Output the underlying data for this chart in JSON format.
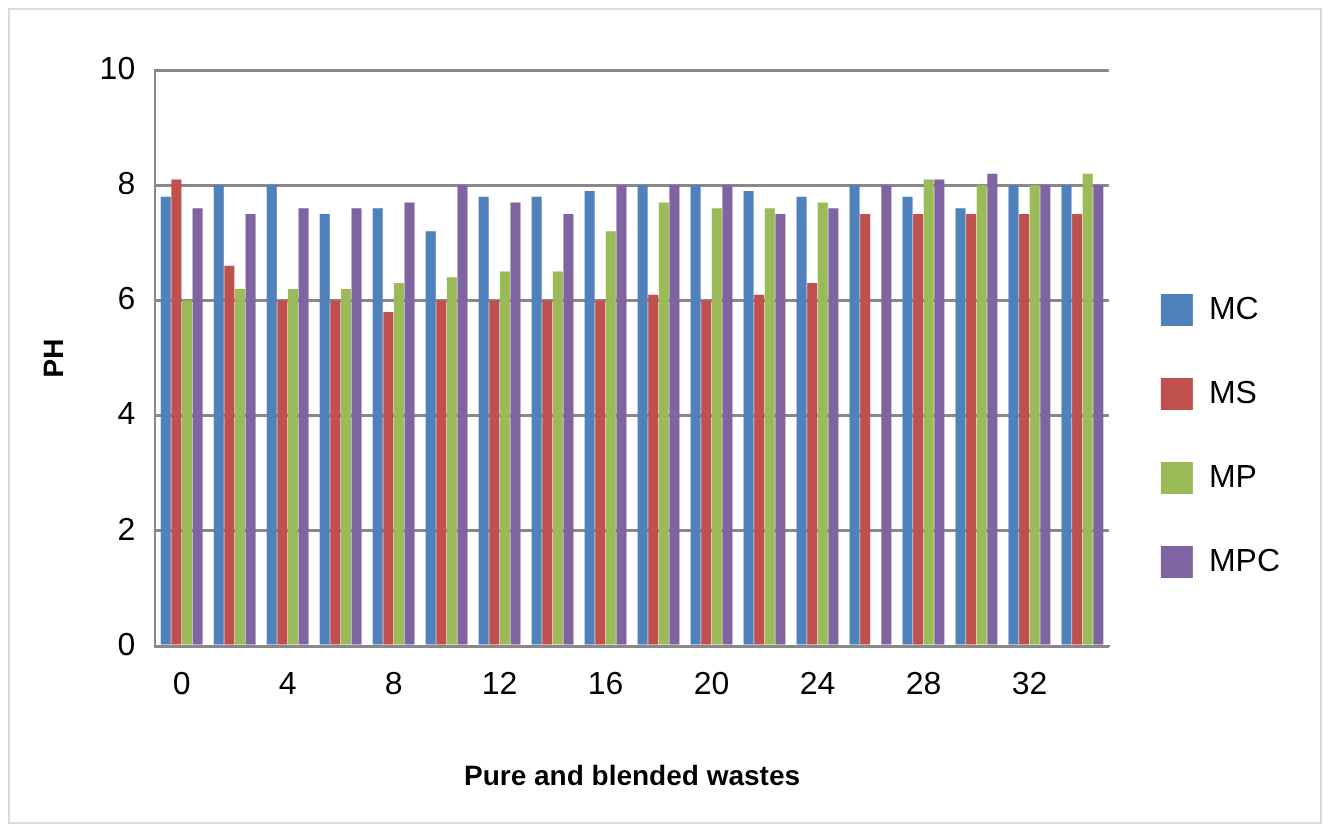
{
  "chart_data": {
    "type": "bar",
    "xlabel": "Pure and blended wastes",
    "ylabel": "PH",
    "categories": [
      "0",
      null,
      "4",
      null,
      "8",
      null,
      "12",
      null,
      "16",
      null,
      "20",
      null,
      "24",
      null,
      "28",
      null,
      "32",
      null
    ],
    "series": [
      {
        "name": "MC",
        "color": "#4f81bd",
        "values": [
          7.8,
          8.0,
          8.0,
          7.5,
          7.6,
          7.2,
          7.8,
          7.8,
          7.9,
          8.0,
          8.0,
          7.9,
          7.8,
          8.0,
          7.8,
          7.6,
          8.0,
          8.0
        ]
      },
      {
        "name": "MS",
        "color": "#c0504d",
        "values": [
          8.1,
          6.6,
          6.0,
          6.0,
          5.8,
          6.0,
          6.0,
          6.0,
          6.0,
          6.1,
          6.0,
          6.1,
          6.3,
          7.5,
          7.5,
          7.5,
          7.5,
          7.5
        ]
      },
      {
        "name": "MP",
        "color": "#9bbb59",
        "values": [
          6.0,
          6.2,
          6.2,
          6.2,
          6.3,
          6.4,
          6.5,
          6.5,
          7.2,
          7.7,
          7.6,
          7.6,
          7.7,
          null,
          8.1,
          8.0,
          8.0,
          8.2
        ]
      },
      {
        "name": "MPC",
        "color": "#8064a2",
        "values": [
          7.6,
          7.5,
          7.6,
          7.6,
          7.7,
          8.0,
          7.7,
          7.5,
          8.0,
          8.0,
          8.0,
          7.5,
          7.6,
          8.0,
          8.1,
          8.2,
          8.0,
          8.0
        ]
      }
    ],
    "ylim": [
      0,
      10
    ],
    "yticks": [
      0,
      2,
      4,
      6,
      8,
      10
    ],
    "grid": "y",
    "legend": "right"
  }
}
